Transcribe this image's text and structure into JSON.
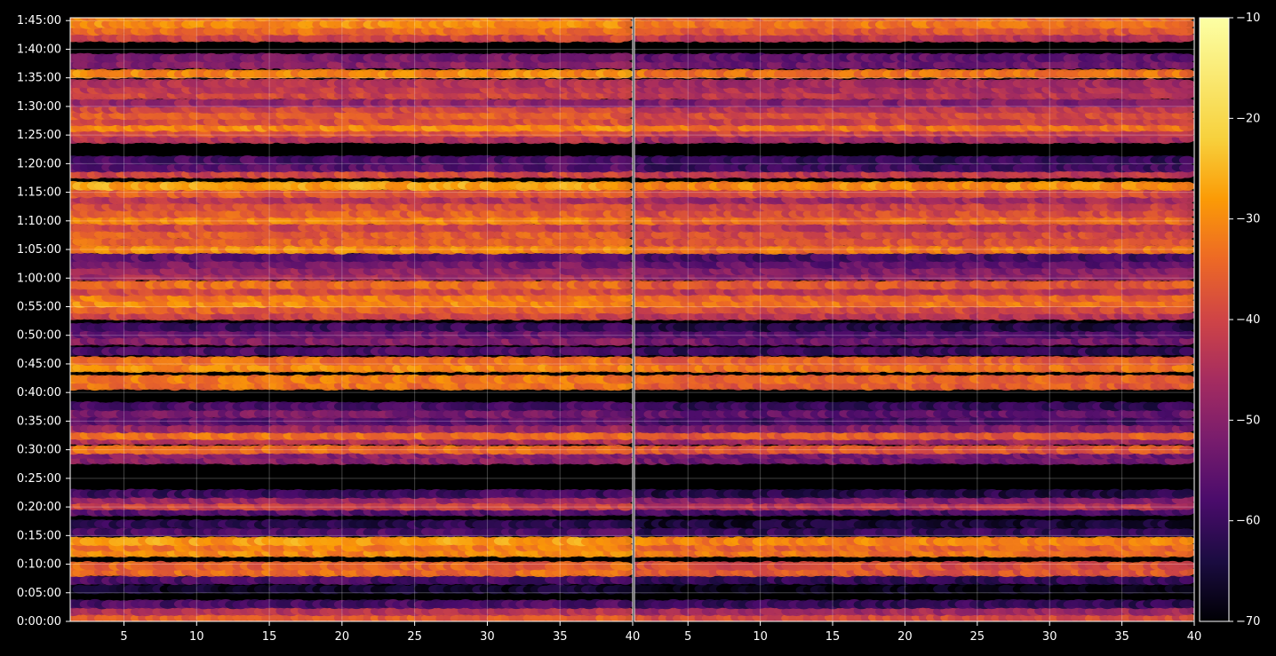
{
  "chart_data": {
    "type": "heatmap",
    "title": "",
    "xlabel": "",
    "ylabel": "",
    "panels": [
      {
        "name": "",
        "xlim": [
          1.3,
          40
        ],
        "x_ticks": [
          5,
          10,
          15,
          20,
          25,
          30,
          35,
          40
        ]
      },
      {
        "name": "",
        "xlim": [
          1.3,
          40
        ],
        "x_ticks": [
          5,
          10,
          15,
          20,
          25,
          30,
          35,
          40
        ]
      }
    ],
    "ylim_seconds": [
      0,
      6330
    ],
    "y_ticks": [
      "0:00:00",
      "0:05:00",
      "0:10:00",
      "0:15:00",
      "0:20:00",
      "0:25:00",
      "0:30:00",
      "0:35:00",
      "0:40:00",
      "0:45:00",
      "0:50:00",
      "0:55:00",
      "1:00:00",
      "1:05:00",
      "1:10:00",
      "1:15:00",
      "1:20:00",
      "1:25:00",
      "1:30:00",
      "1:35:00",
      "1:40:00",
      "1:45:00"
    ],
    "colorbar": {
      "colormap": "inferno",
      "range": [
        -70,
        -10
      ],
      "ticks": [
        "−70",
        "−60",
        "−50",
        "−40",
        "−30",
        "−20",
        "−10"
      ]
    },
    "grid": true,
    "bands_minutes": [
      {
        "t": 0.6,
        "v": -36
      },
      {
        "t": 1.8,
        "v": -44
      },
      {
        "t": 3.0,
        "v": -58
      },
      {
        "t": 5.6,
        "v": -66
      },
      {
        "t": 7.2,
        "v": -58
      },
      {
        "t": 8.6,
        "v": -34
      },
      {
        "t": 9.7,
        "v": -35
      },
      {
        "t": 12.0,
        "v": -30
      },
      {
        "t": 13.0,
        "v": -32
      },
      {
        "t": 14.0,
        "v": -28
      },
      {
        "t": 15.6,
        "v": -58
      },
      {
        "t": 17.0,
        "v": -62
      },
      {
        "t": 19.2,
        "v": -56
      },
      {
        "t": 20.2,
        "v": -40
      },
      {
        "t": 21.3,
        "v": -48
      },
      {
        "t": 22.3,
        "v": -60
      },
      {
        "t": 28.2,
        "v": -50
      },
      {
        "t": 29.2,
        "v": -50
      },
      {
        "t": 30.0,
        "v": -34
      },
      {
        "t": 31.6,
        "v": -44
      },
      {
        "t": 32.5,
        "v": -33
      },
      {
        "t": 33.7,
        "v": -48
      },
      {
        "t": 35.0,
        "v": -56
      },
      {
        "t": 36.3,
        "v": -52
      },
      {
        "t": 37.6,
        "v": -58
      },
      {
        "t": 41.2,
        "v": -33
      },
      {
        "t": 42.3,
        "v": -32
      },
      {
        "t": 44.3,
        "v": -30
      },
      {
        "t": 45.5,
        "v": -33
      },
      {
        "t": 47.2,
        "v": -58
      },
      {
        "t": 49.0,
        "v": -50
      },
      {
        "t": 50.2,
        "v": -54
      },
      {
        "t": 51.4,
        "v": -60
      },
      {
        "t": 53.4,
        "v": -40
      },
      {
        "t": 54.5,
        "v": -36
      },
      {
        "t": 55.6,
        "v": -30
      },
      {
        "t": 56.6,
        "v": -32
      },
      {
        "t": 57.7,
        "v": -40
      },
      {
        "t": 58.8,
        "v": -34
      },
      {
        "t": 60.3,
        "v": -46
      },
      {
        "t": 61.3,
        "v": -48
      },
      {
        "t": 62.4,
        "v": -52
      },
      {
        "t": 63.6,
        "v": -56
      },
      {
        "t": 65.0,
        "v": -30
      },
      {
        "t": 66.3,
        "v": -35
      },
      {
        "t": 67.6,
        "v": -36
      },
      {
        "t": 68.8,
        "v": -40
      },
      {
        "t": 70.1,
        "v": -31
      },
      {
        "t": 71.3,
        "v": -36
      },
      {
        "t": 72.5,
        "v": -38
      },
      {
        "t": 73.7,
        "v": -44
      },
      {
        "t": 74.8,
        "v": -36
      },
      {
        "t": 76.1,
        "v": -27
      },
      {
        "t": 78.2,
        "v": -40
      },
      {
        "t": 79.3,
        "v": -56
      },
      {
        "t": 80.6,
        "v": -58
      },
      {
        "t": 84.3,
        "v": -44
      },
      {
        "t": 85.4,
        "v": -38
      },
      {
        "t": 86.4,
        "v": -30
      },
      {
        "t": 87.4,
        "v": -38
      },
      {
        "t": 88.5,
        "v": -36
      },
      {
        "t": 89.6,
        "v": -40
      },
      {
        "t": 90.6,
        "v": -48
      },
      {
        "t": 92.0,
        "v": -40
      },
      {
        "t": 93.0,
        "v": -42
      },
      {
        "t": 94.0,
        "v": -44
      },
      {
        "t": 95.7,
        "v": -30
      },
      {
        "t": 97.3,
        "v": -50
      },
      {
        "t": 98.5,
        "v": -52
      },
      {
        "t": 102.0,
        "v": -40
      },
      {
        "t": 103.2,
        "v": -34
      },
      {
        "t": 104.4,
        "v": -30
      },
      {
        "t": 105.7,
        "v": -32
      }
    ]
  }
}
